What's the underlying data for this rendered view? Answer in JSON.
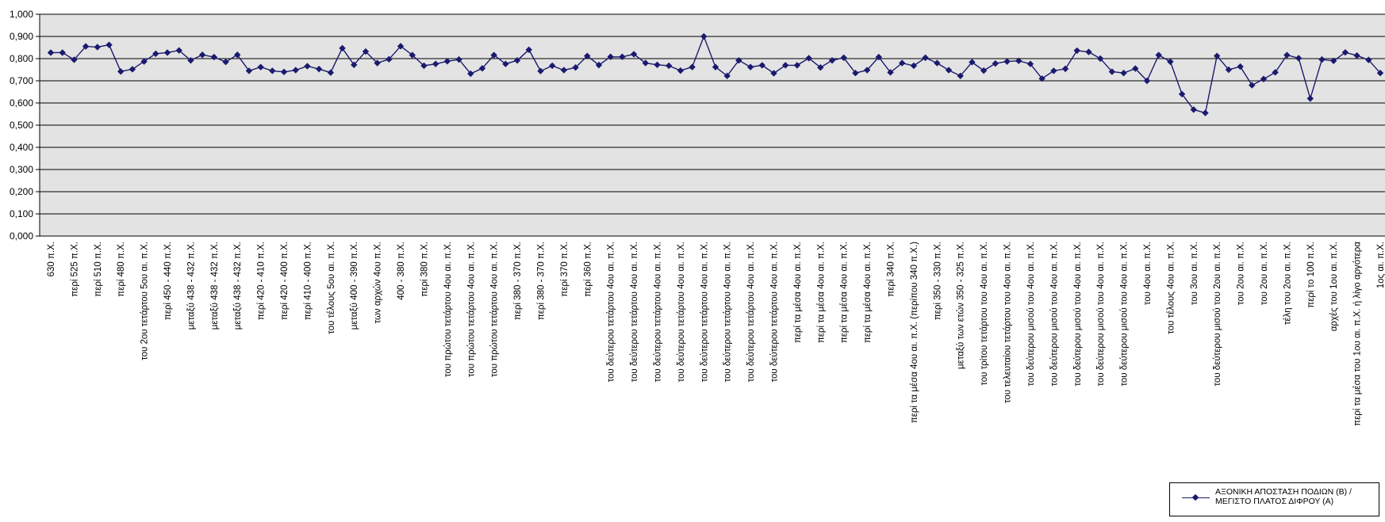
{
  "chart_data": {
    "type": "line",
    "title": "",
    "xlabel": "",
    "ylabel": "",
    "ylim": [
      0,
      1
    ],
    "y_ticks": [
      "0,000",
      "0,100",
      "0,200",
      "0,300",
      "0,400",
      "0,500",
      "0,600",
      "0,700",
      "0,800",
      "0,900",
      "1,000"
    ],
    "grid": "horizontal",
    "legend_position": "bottom-right",
    "colors": {
      "series": "#1a1a6e",
      "plot_background": "#e3e3e3",
      "grid": "#000000"
    },
    "categories": [
      "630 π.Χ.",
      "",
      "περί 525 π.Χ.",
      "",
      "περί 510 π.Χ.",
      "",
      "περί 480 π.Χ.",
      "",
      "του 2ου τετάρτου 5ου αι. π.Χ.",
      "",
      "περί 450 - 440 π.Χ.",
      "",
      "μεταξύ 438 - 432 π.Χ.",
      "",
      "μεταξύ 438 - 432 π.Χ.",
      "",
      "μεταξύ 438 - 432 π.Χ.",
      "",
      "περί 420 - 410 π.Χ.",
      "",
      "περί 420 - 400 π.Χ.",
      "",
      "περί 410 - 400 π.Χ.",
      "",
      "του τέλους 5ου αι. π.Χ.",
      "",
      "μεταξύ 400 - 390 π.Χ.",
      "",
      "των αρχών 4ου π.Χ.",
      "",
      "400 - 380 π.Χ.",
      "",
      "περί 380 π.Χ.",
      "",
      "του πρώτου τετάρτου 4ου αι. π.Χ.",
      "",
      "του πρώτου τετάρτου 4ου αι. π.Χ.",
      "",
      "του πρώτου τετάρτου 4ου αι. π.Χ.",
      "",
      "περί 380 - 370 π.Χ.",
      "",
      "περί 380 - 370 π.Χ.",
      "",
      "περί 370 π.Χ.",
      "",
      "περί 360 π.Χ.",
      "",
      "του δεύτερου τετάρτου 4ου αι. π.Χ.",
      "",
      "του δεύτερου τετάρτου 4ου αι. π.Χ.",
      "",
      "του δεύτερου τετάρτου 4ου αι. π.Χ.",
      "",
      "του δεύτερου τετάρτου 4ου αι. π.Χ.",
      "",
      "του δεύτερου τετάρτου 4ου αι. π.Χ.",
      "",
      "του δεύτερου τετάρτου 4ου αι. π.Χ.",
      "",
      "του δεύτερου τετάρτου 4ου αι. π.Χ.",
      "",
      "του δεύτερου τετάρτου 4ου αι. π.Χ.",
      "",
      "περί τα μέσα 4ου αι. π.Χ.",
      "",
      "περί τα μέσα 4ου αι. π.Χ.",
      "",
      "περί τα μέσα 4ου αι. π.Χ.",
      "",
      "περί τα μέσα 4ου αι. π.Χ.",
      "",
      "περί 340 π.Χ.",
      "",
      "περί τα μέσα 4ου αι. π.Χ. (περίπου 340 π.Χ.)",
      "",
      "περί 350 - 330 π.Χ.",
      "",
      "μεταξύ των ετών 350 - 325 π.Χ.",
      "",
      "του τρίτου τετάρτου του 4ου αι. π.Χ.",
      "",
      "του τελευταίου τετάρτου του 4ου αι. π.Χ.",
      "",
      "του δεύτερου μισού του 4ου αι. π.Χ.",
      "",
      "του δεύτερου μισού του 4ου αι. π.Χ.",
      "",
      "του δεύτερου μισού του 4ου αι. π.Χ.",
      "",
      "του δεύτερου μισού του 4ου αι. π.Χ.",
      "",
      "του δεύτερου μισού του 4ου αι. π.Χ.",
      "",
      "του 4ου αι. π.Χ.",
      "",
      "του τέλους 4ου αι. π.Χ.",
      "",
      "του 3ου αι. π.Χ.",
      "",
      "του δεύτερου μισού του 2ου αι. π.Χ.",
      "",
      "του 2ου αι. π.Χ.",
      "",
      "του 2ου αι. π.Χ.",
      "",
      "τέλη του 2ου αι. π.Χ.",
      "",
      "περί το 100 π.Χ.",
      "",
      "αρχές του 1ου αι. π.Χ.",
      "",
      "περί τα μέσα του 1ου αι. π.Χ. ή λίγο αργότερα",
      "",
      "1ος αι. π.Χ."
    ],
    "series": [
      {
        "name": "ΑΞΟΝΙΚΗ ΑΠΟΣΤΑΣΗ ΠΟΔΙΩΝ (Β) / ΜΕΓΙΣΤΟ ΠΛΑΤΟΣ ΔΙΦΡΟΥ (Α)",
        "values": [
          0.827,
          0.827,
          0.795,
          0.855,
          0.852,
          0.862,
          0.742,
          0.752,
          0.787,
          0.822,
          0.827,
          0.837,
          0.792,
          0.817,
          0.807,
          0.785,
          0.817,
          0.745,
          0.762,
          0.745,
          0.74,
          0.748,
          0.766,
          0.753,
          0.737,
          0.847,
          0.772,
          0.832,
          0.78,
          0.797,
          0.856,
          0.816,
          0.768,
          0.776,
          0.788,
          0.796,
          0.732,
          0.756,
          0.816,
          0.776,
          0.792,
          0.84,
          0.744,
          0.768,
          0.748,
          0.76,
          0.812,
          0.771,
          0.808,
          0.808,
          0.82,
          0.78,
          0.772,
          0.768,
          0.746,
          0.762,
          0.9,
          0.762,
          0.722,
          0.792,
          0.762,
          0.77,
          0.734,
          0.77,
          0.77,
          0.802,
          0.76,
          0.792,
          0.804,
          0.735,
          0.748,
          0.807,
          0.738,
          0.78,
          0.768,
          0.804,
          0.78,
          0.748,
          0.722,
          0.784,
          0.746,
          0.778,
          0.787,
          0.79,
          0.776,
          0.71,
          0.745,
          0.754,
          0.836,
          0.83,
          0.8,
          0.741,
          0.735,
          0.755,
          0.7,
          0.816,
          0.786,
          0.64,
          0.57,
          0.555,
          0.812,
          0.75,
          0.764,
          0.68,
          0.708,
          0.738,
          0.816,
          0.802,
          0.62,
          0.796,
          0.79,
          0.828,
          0.814,
          0.794,
          0.735
        ]
      }
    ]
  }
}
